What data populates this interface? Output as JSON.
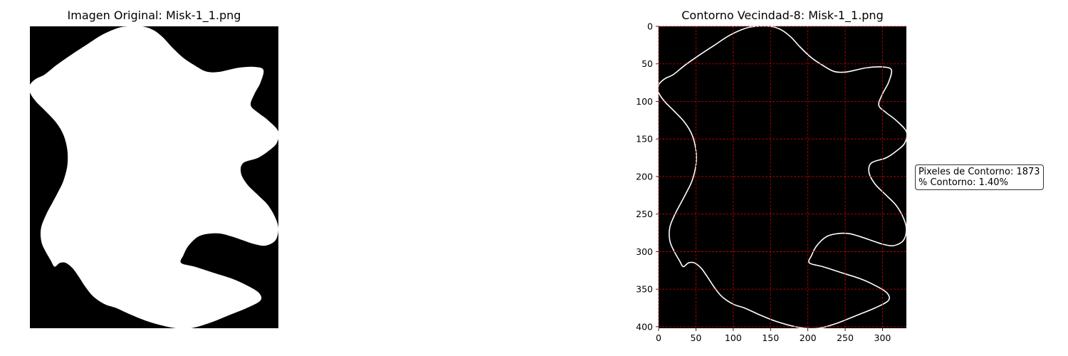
{
  "left_panel": {
    "title": "Imagen Original: Misk-1_1.png"
  },
  "right_panel": {
    "title": "Contorno Vecindad-8: Misk-1_1.png",
    "grid_color": "#cc0000",
    "contour_color": "#ffffff"
  },
  "info": {
    "contour_pixels_label": "Pixeles de Contorno: 1873",
    "contour_percent_label": "% Contorno: 1.40%"
  },
  "chart_data": {
    "type": "image",
    "xlim": [
      0,
      332
    ],
    "ylim": [
      402,
      0
    ],
    "x_ticks": [
      0,
      50,
      100,
      150,
      200,
      250,
      300
    ],
    "y_ticks": [
      0,
      50,
      100,
      150,
      200,
      250,
      300,
      350,
      400
    ],
    "grid": true,
    "shape_outline": [
      [
        0,
        78
      ],
      [
        8,
        70
      ],
      [
        20,
        64
      ],
      [
        35,
        52
      ],
      [
        55,
        38
      ],
      [
        75,
        25
      ],
      [
        95,
        12
      ],
      [
        115,
        3
      ],
      [
        130,
        0
      ],
      [
        150,
        0
      ],
      [
        165,
        5
      ],
      [
        178,
        15
      ],
      [
        190,
        28
      ],
      [
        205,
        42
      ],
      [
        220,
        52
      ],
      [
        235,
        60
      ],
      [
        250,
        61
      ],
      [
        265,
        58
      ],
      [
        280,
        55
      ],
      [
        300,
        54
      ],
      [
        312,
        58
      ],
      [
        308,
        75
      ],
      [
        300,
        90
      ],
      [
        295,
        105
      ],
      [
        305,
        115
      ],
      [
        318,
        125
      ],
      [
        332,
        140
      ],
      [
        330,
        155
      ],
      [
        320,
        165
      ],
      [
        305,
        175
      ],
      [
        285,
        182
      ],
      [
        282,
        195
      ],
      [
        290,
        210
      ],
      [
        305,
        225
      ],
      [
        318,
        238
      ],
      [
        328,
        255
      ],
      [
        332,
        270
      ],
      [
        328,
        285
      ],
      [
        315,
        292
      ],
      [
        300,
        290
      ],
      [
        285,
        285
      ],
      [
        270,
        280
      ],
      [
        255,
        276
      ],
      [
        240,
        276
      ],
      [
        225,
        280
      ],
      [
        212,
        292
      ],
      [
        205,
        305
      ],
      [
        202,
        315
      ],
      [
        220,
        320
      ],
      [
        245,
        328
      ],
      [
        270,
        336
      ],
      [
        290,
        345
      ],
      [
        306,
        355
      ],
      [
        308,
        365
      ],
      [
        290,
        375
      ],
      [
        265,
        385
      ],
      [
        240,
        395
      ],
      [
        215,
        402
      ],
      [
        195,
        402
      ],
      [
        175,
        398
      ],
      [
        155,
        392
      ],
      [
        135,
        384
      ],
      [
        115,
        375
      ],
      [
        100,
        370
      ],
      [
        85,
        360
      ],
      [
        75,
        348
      ],
      [
        65,
        333
      ],
      [
        57,
        322
      ],
      [
        48,
        315
      ],
      [
        40,
        315
      ],
      [
        33,
        320
      ],
      [
        28,
        312
      ],
      [
        20,
        298
      ],
      [
        15,
        285
      ],
      [
        15,
        268
      ],
      [
        22,
        250
      ],
      [
        30,
        235
      ],
      [
        38,
        220
      ],
      [
        45,
        205
      ],
      [
        50,
        185
      ],
      [
        50,
        165
      ],
      [
        45,
        145
      ],
      [
        35,
        128
      ],
      [
        20,
        112
      ],
      [
        8,
        100
      ],
      [
        0,
        88
      ]
    ]
  }
}
